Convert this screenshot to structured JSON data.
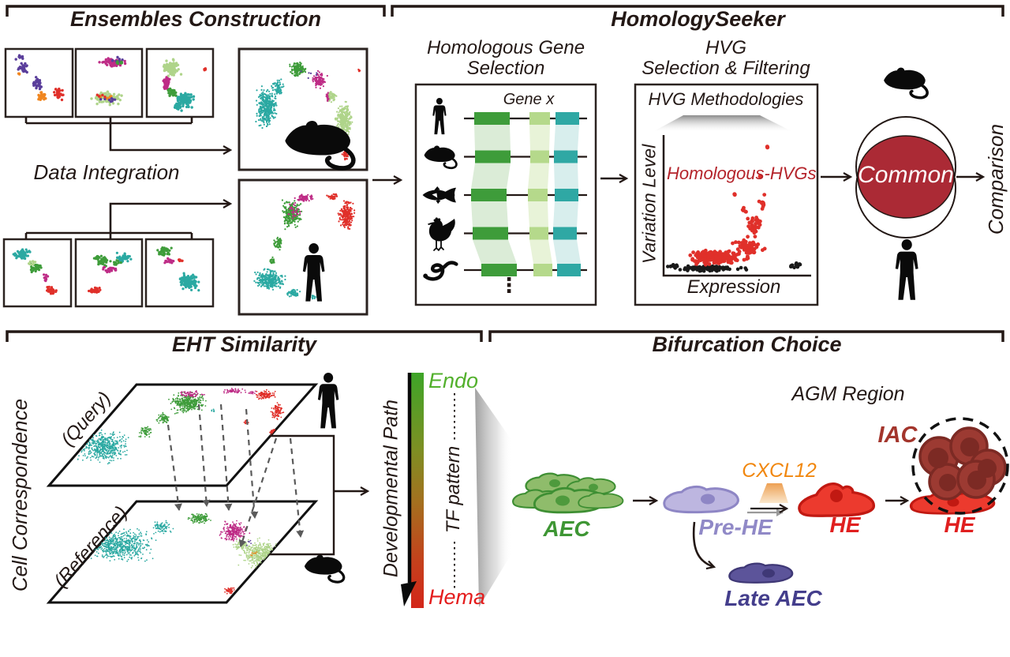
{
  "panels": {
    "ensembles": {
      "title": "Ensembles Construction",
      "data_integration_label": "Data Integration"
    },
    "homology_seeker": {
      "title": "HomologySeeker",
      "gene_selection": {
        "title_line1": "Homologous Gene",
        "title_line2": "Selection",
        "gene_label": "Gene x",
        "ellipsis": "⋮",
        "species": [
          "human",
          "mouse",
          "fish",
          "chicken",
          "eel"
        ]
      },
      "hvg": {
        "title_line1": "HVG",
        "title_line2": "Selection & Filtering",
        "box_title": "HVG Methodologies",
        "scatter_label": "Homologous-HVGs",
        "ylabel": "Variation Level",
        "xlabel": "Expression"
      },
      "venn": {
        "common_label": "Common",
        "comparison_label": "Comparison"
      }
    },
    "eht": {
      "title": "EHT Similarity",
      "side_label": "Cell Correspondence",
      "query_label": "(Query)",
      "reference_label": "(Reference)",
      "gradient": {
        "axis_label": "Developmental Path",
        "top_label": "Endo",
        "mid_label": "TF pattern",
        "bottom_label": "Hema",
        "top_color": "#3DA528",
        "bottom_color": "#D3261A"
      }
    },
    "bifurcation": {
      "title": "Bifurcation Choice",
      "region_label": "AGM Region",
      "aec_label": "AEC",
      "pre_he_label": "Pre-HE",
      "signal_label": "CXCL12",
      "he1_label": "HE",
      "he2_label": "HE",
      "iac_label": "IAC",
      "late_aec_label": "Late AEC"
    }
  },
  "palette": {
    "teal": "#2BA9A2",
    "green": "#3E9C3A",
    "lightgreen": "#AFD48A",
    "magenta": "#BE2C86",
    "red": "#E0302A",
    "purple": "#5A3E9B",
    "orange": "#F08620",
    "black": "#1A1A1A",
    "common_fill": "#AB2A35",
    "hvg_label": "#B4232A",
    "aec_fill": "#8FBC6B",
    "aec_stroke": "#3E8F33",
    "prehe_fill": "#BDB6E0",
    "prehe_stroke": "#8E86C5",
    "he_fill": "#EC3A2E",
    "he_stroke": "#C11912",
    "iac_fill": "#9C3A32",
    "iac_stroke": "#7C2A24",
    "late_fill": "#5C549A",
    "late_stroke": "#3F3876",
    "cxcl12": "#F1870E",
    "endo": "#52B02C",
    "hema": "#E41C1C"
  },
  "scatter": [
    [
      "m1",
      "purple",
      30,
      86,
      9,
      10,
      26,
      1.7
    ],
    [
      "m1",
      "purple",
      48,
      106,
      11,
      10,
      30,
      1.7
    ],
    [
      "m1",
      "purple",
      26,
      74,
      6,
      5,
      9,
      1.7
    ],
    [
      "m1",
      "orange",
      53,
      122,
      9,
      7,
      22,
      1.7
    ],
    [
      "m1",
      "orange",
      24,
      94,
      2,
      2,
      3,
      1.7
    ],
    [
      "m1",
      "red",
      74,
      119,
      8,
      11,
      30,
      1.7
    ],
    [
      "m2",
      "magenta",
      143,
      79,
      20,
      7,
      65,
      1.7
    ],
    [
      "m2",
      "purple",
      148,
      77,
      15,
      5,
      8,
      1.7
    ],
    [
      "m2",
      "green",
      150,
      80,
      12,
      4,
      6,
      1.7
    ],
    [
      "m2",
      "lightgreen",
      135,
      124,
      25,
      9,
      85,
      1.7
    ],
    [
      "m2",
      "orange",
      133,
      123,
      18,
      6,
      9,
      1.7
    ],
    [
      "m2",
      "purple",
      140,
      126,
      16,
      6,
      8,
      1.7
    ],
    [
      "m2",
      "red",
      127,
      121,
      9,
      4,
      4,
      1.7
    ],
    [
      "m3",
      "lightgreen",
      217,
      86,
      14,
      13,
      85,
      1.7
    ],
    [
      "m3",
      "magenta",
      211,
      106,
      6,
      12,
      45,
      1.7
    ],
    [
      "m3",
      "green",
      219,
      117,
      7,
      7,
      30,
      1.7
    ],
    [
      "m3",
      "teal",
      235,
      127,
      14,
      11,
      90,
      1.7
    ],
    [
      "m3",
      "teal",
      225,
      135,
      8,
      6,
      25,
      1.7
    ],
    [
      "m3",
      "red",
      259,
      88,
      2.5,
      2.5,
      5,
      1.7
    ],
    [
      "h1",
      "teal",
      28,
      322,
      14,
      9,
      55,
      1.6
    ],
    [
      "h1",
      "green",
      45,
      339,
      10,
      8,
      30,
      1.6
    ],
    [
      "h1",
      "lightgreen",
      39,
      333,
      8,
      5,
      10,
      1.6
    ],
    [
      "h1",
      "magenta",
      57,
      352,
      5,
      6,
      14,
      1.6
    ],
    [
      "h1",
      "red",
      65,
      368,
      9,
      7,
      30,
      1.6
    ],
    [
      "h2",
      "green",
      129,
      330,
      13,
      9,
      40,
      1.6
    ],
    [
      "h2",
      "teal",
      157,
      327,
      12,
      8,
      38,
      1.6
    ],
    [
      "h2",
      "magenta",
      139,
      341,
      12,
      6,
      26,
      1.6
    ],
    [
      "h2",
      "green",
      147,
      333,
      8,
      5,
      12,
      1.6
    ],
    [
      "h2",
      "red",
      121,
      368,
      12,
      5,
      32,
      1.6
    ],
    [
      "h3",
      "green",
      207,
      318,
      12,
      8,
      38,
      1.6
    ],
    [
      "h3",
      "magenta",
      215,
      331,
      8,
      5,
      18,
      1.6
    ],
    [
      "h3",
      "red",
      229,
      330,
      4,
      3,
      8,
      1.6
    ],
    [
      "h3",
      "teal",
      239,
      357,
      17,
      13,
      110,
      1.6
    ],
    [
      "bm",
      "teal",
      338,
      136,
      16,
      29,
      400,
      1.1
    ],
    [
      "bm",
      "teal",
      352,
      112,
      9,
      13,
      70,
      1.1
    ],
    [
      "bm",
      "green",
      378,
      88,
      13,
      11,
      140,
      1.1
    ],
    [
      "bm",
      "magenta",
      405,
      101,
      11,
      13,
      110,
      1.1
    ],
    [
      "bm",
      "magenta",
      416,
      122,
      5,
      9,
      35,
      1.1
    ],
    [
      "bm",
      "lightgreen",
      436,
      152,
      13,
      26,
      320,
      1.1
    ],
    [
      "bm",
      "lightgreen",
      421,
      121,
      7,
      9,
      50,
      1.1
    ],
    [
      "bm",
      "red",
      438,
      196,
      5,
      8,
      35,
      1.1
    ],
    [
      "bm",
      "red",
      455,
      89,
      2.5,
      2.5,
      7,
      1.1
    ],
    [
      "bm",
      "purple",
      392,
      96,
      18,
      13,
      6,
      1.1
    ],
    [
      "bh",
      "green",
      369,
      271,
      15,
      21,
      250,
      1.1
    ],
    [
      "bh",
      "green",
      353,
      308,
      7,
      12,
      55,
      1.1
    ],
    [
      "bh",
      "green",
      345,
      331,
      5,
      7,
      25,
      1.1
    ],
    [
      "bh",
      "magenta",
      386,
      251,
      16,
      6,
      70,
      1.1
    ],
    [
      "bh",
      "magenta",
      372,
      268,
      10,
      13,
      30,
      1.1
    ],
    [
      "bh",
      "red",
      439,
      272,
      12,
      23,
      230,
      1.1
    ],
    [
      "bh",
      "red",
      421,
      249,
      9,
      5,
      35,
      1.1
    ],
    [
      "bh",
      "teal",
      341,
      354,
      24,
      17,
      300,
      1.1
    ],
    [
      "bh",
      "teal",
      372,
      371,
      11,
      7,
      55,
      1.1
    ],
    [
      "bh",
      "teal",
      397,
      377,
      7,
      4,
      12,
      1.1
    ],
    [
      "hv",
      "black",
      900,
      340,
      52,
      4,
      120,
      2.3
    ],
    [
      "hv",
      "black",
      1008,
      336,
      14,
      5,
      14,
      2.3
    ],
    [
      "hv",
      "black",
      856,
      337,
      14,
      3,
      12,
      2.3
    ],
    [
      "hv",
      "red",
      905,
      326,
      48,
      11,
      200,
      2.4
    ],
    [
      "hv",
      "red",
      948,
      312,
      24,
      14,
      70,
      2.4
    ],
    [
      "hv",
      "red",
      956,
      286,
      11,
      16,
      30,
      2.4
    ],
    [
      "hv",
      "red",
      967,
      257,
      7,
      11,
      10,
      2.4
    ],
    [
      "hv",
      "red",
      944,
      266,
      5,
      7,
      6,
      2.4
    ],
    [
      "hv",
      "red",
      973,
      186,
      2,
      2,
      2,
      2.6
    ],
    [
      "hv",
      "red",
      964,
      224,
      2.5,
      2.5,
      2,
      2.6
    ],
    [
      "hv",
      "red",
      931,
      246,
      2.5,
      2,
      2,
      2.6
    ],
    [
      "q",
      "teal",
      133,
      566,
      40,
      25,
      500,
      0.9
    ],
    [
      "q",
      "green",
      184,
      546,
      12,
      9,
      60,
      0.9
    ],
    [
      "q",
      "green",
      207,
      530,
      10,
      9,
      70,
      0.9
    ],
    [
      "q",
      "green",
      238,
      510,
      27,
      15,
      380,
      0.9
    ],
    [
      "q",
      "magenta",
      242,
      499,
      22,
      5,
      60,
      0.9
    ],
    [
      "q",
      "magenta",
      296,
      495,
      18,
      4,
      55,
      0.9
    ],
    [
      "q",
      "magenta",
      320,
      497,
      8,
      3,
      12,
      0.9
    ],
    [
      "q",
      "teal",
      270,
      520,
      4,
      3,
      8,
      0.9
    ],
    [
      "q",
      "red",
      336,
      500,
      17,
      7,
      110,
      0.9
    ],
    [
      "q",
      "red",
      351,
      520,
      9,
      13,
      90,
      0.9
    ],
    [
      "q",
      "red",
      346,
      547,
      7,
      7,
      35,
      0.9
    ],
    [
      "q",
      "red",
      312,
      534,
      4,
      4,
      12,
      0.9
    ],
    [
      "rf",
      "teal",
      150,
      691,
      52,
      24,
      620,
      0.9
    ],
    [
      "rf",
      "teal",
      205,
      668,
      18,
      10,
      80,
      0.9
    ],
    [
      "rf",
      "green",
      252,
      656,
      19,
      8,
      130,
      0.9
    ],
    [
      "rf",
      "magenta",
      296,
      673,
      21,
      15,
      250,
      0.9
    ],
    [
      "rf",
      "lightgreen",
      331,
      701,
      33,
      22,
      450,
      0.9
    ],
    [
      "rf",
      "lightgreen",
      305,
      690,
      12,
      10,
      70,
      0.9
    ],
    [
      "rf",
      "red",
      291,
      747,
      9,
      6,
      45,
      0.9
    ],
    [
      "rf",
      "orange",
      322,
      700,
      9,
      7,
      7,
      0.9
    ],
    [
      "rf",
      "purple",
      318,
      688,
      8,
      6,
      5,
      0.9
    ]
  ]
}
